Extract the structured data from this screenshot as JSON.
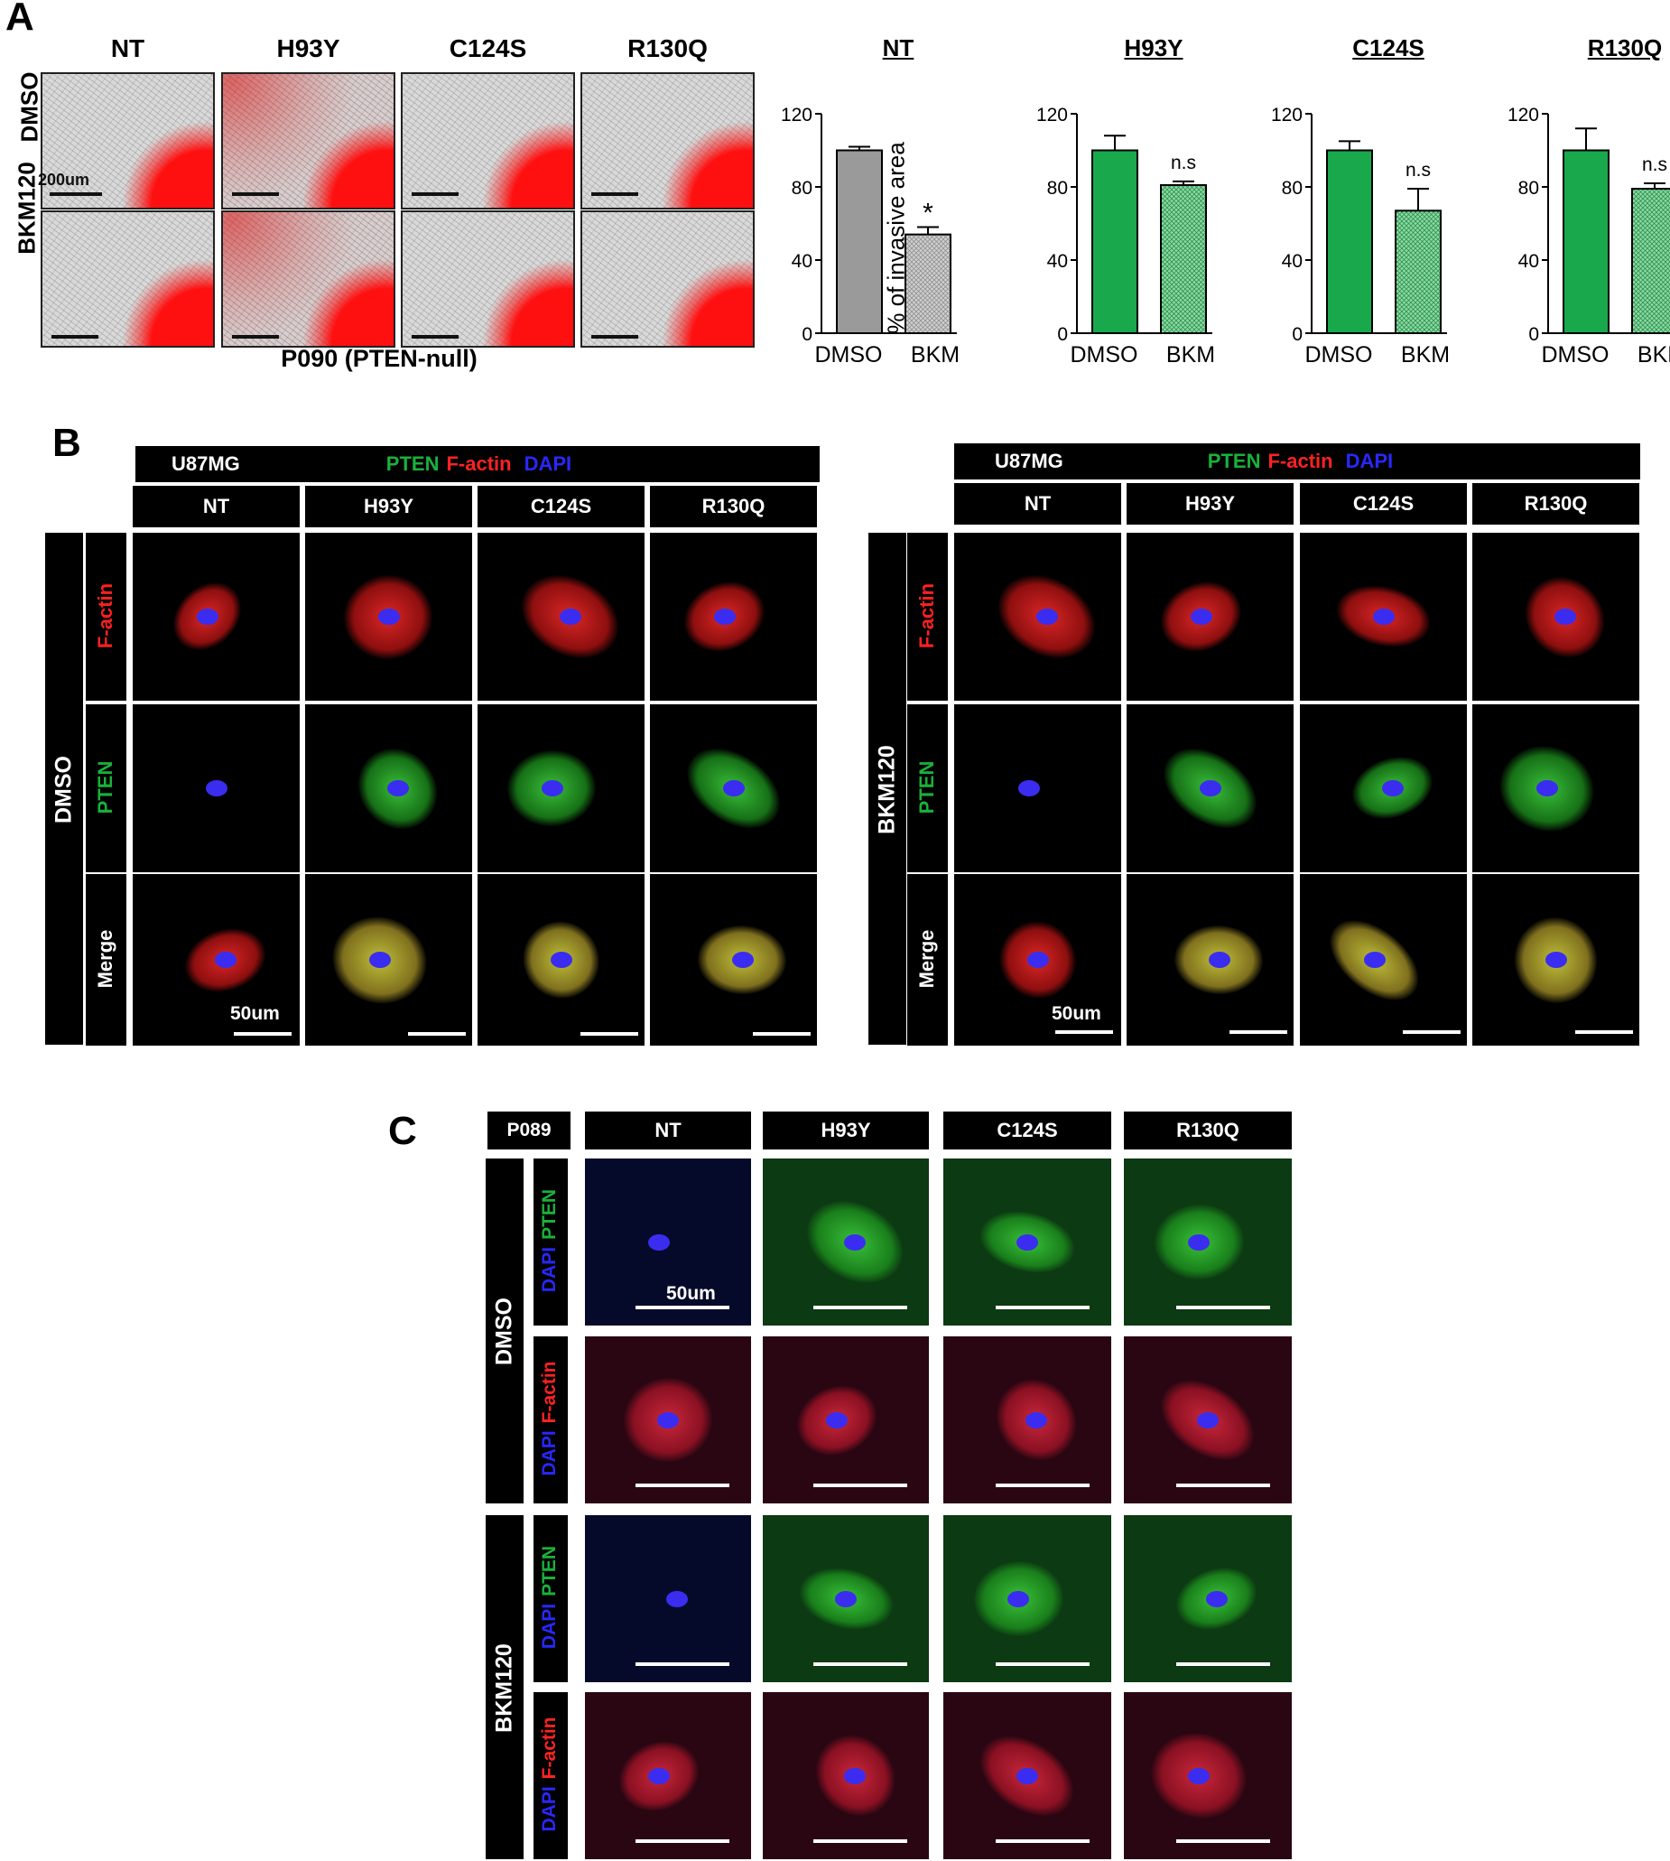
{
  "panel_letters": {
    "a": "A",
    "b": "B",
    "c": "C"
  },
  "panel_a": {
    "column_labels": [
      "NT",
      "H93Y",
      "C124S",
      "R130Q"
    ],
    "row_labels": [
      "DMSO",
      "BKM120"
    ],
    "scale_label": "200um",
    "caption": "P090 (PTEN-null)",
    "ylabel": "% of invasive area"
  },
  "chart_data": [
    {
      "type": "bar",
      "title": "NT",
      "categories": [
        "DMSO",
        "BKM"
      ],
      "values": [
        100,
        54
      ],
      "errors": [
        2,
        4
      ],
      "annotations": [
        "",
        "*"
      ],
      "ylim": [
        0,
        120
      ],
      "yticks": [
        "0",
        "40",
        "80",
        "120"
      ],
      "colors": [
        "#9a9a9a",
        "#cfcfcf"
      ],
      "ylabel": "% of invasive area"
    },
    {
      "type": "bar",
      "title": "H93Y",
      "categories": [
        "DMSO",
        "BKM"
      ],
      "values": [
        100,
        81
      ],
      "errors": [
        8,
        2
      ],
      "annotations": [
        "",
        "n.s"
      ],
      "ylim": [
        0,
        120
      ],
      "yticks": [
        "0",
        "40",
        "80",
        "120"
      ],
      "colors": [
        "#19a84c",
        "#8fd6a4"
      ]
    },
    {
      "type": "bar",
      "title": "C124S",
      "categories": [
        "DMSO",
        "BKM"
      ],
      "values": [
        100,
        67
      ],
      "errors": [
        5,
        12
      ],
      "annotations": [
        "",
        "n.s"
      ],
      "ylim": [
        0,
        120
      ],
      "yticks": [
        "0",
        "40",
        "80",
        "120"
      ],
      "colors": [
        "#19a84c",
        "#8fd6a4"
      ]
    },
    {
      "type": "bar",
      "title": "R130Q",
      "categories": [
        "DMSO",
        "BKM"
      ],
      "values": [
        100,
        79
      ],
      "errors": [
        12,
        3
      ],
      "annotations": [
        "",
        "n.s"
      ],
      "ylim": [
        0,
        120
      ],
      "yticks": [
        "0",
        "40",
        "80",
        "120"
      ],
      "colors": [
        "#19a84c",
        "#8fd6a4"
      ]
    }
  ],
  "panel_b": {
    "cell_line": "U87MG",
    "stain_pten": "PTEN",
    "stain_factin": "F-actin",
    "stain_dapi": "DAPI",
    "columns": [
      "NT",
      "H93Y",
      "C124S",
      "R130Q"
    ],
    "rows": [
      "F-actin",
      "PTEN",
      "Merge"
    ],
    "treatments": [
      "DMSO",
      "BKM120"
    ],
    "scale_label": "50um"
  },
  "panel_c": {
    "cell_line": "P089",
    "columns": [
      "NT",
      "H93Y",
      "C124S",
      "R130Q"
    ],
    "treatments": [
      "DMSO",
      "BKM120"
    ],
    "row_dapi": "DAPI",
    "row_pten": "PTEN",
    "row_factin": "F-actin",
    "scale_label": "50um"
  },
  "colors": {
    "red": "#ff1a1a",
    "green": "#19b23a",
    "blue": "#2020ff",
    "bar_gray": "#9a9a9a",
    "bar_green": "#19a84c"
  }
}
